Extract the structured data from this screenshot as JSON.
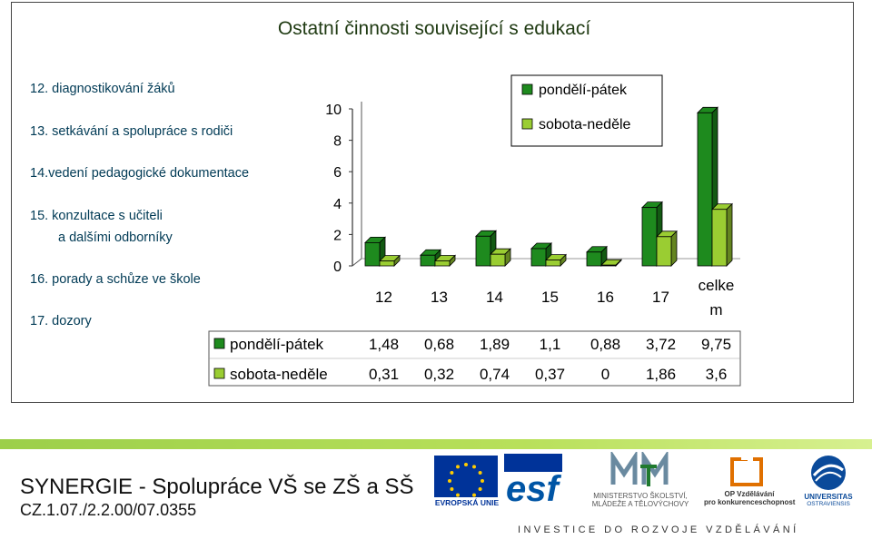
{
  "title": "Ostatní činnosti související s edukací",
  "items": [
    "12. diagnostikování žáků",
    "13. setkávání a spolupráce s rodiči",
    "14.vedení pedagogické dokumentace",
    "15. konzultace s učiteli",
    "a dalšími odborníky",
    "16. porady a schůze ve škole",
    "17. dozory"
  ],
  "colors": {
    "series1": "#1e8a1e",
    "series2": "#9acd32",
    "title": "#1f3a12",
    "stripe": "#9ccf4a"
  },
  "chart_data": {
    "type": "bar",
    "categories": [
      "12",
      "13",
      "14",
      "15",
      "16",
      "17",
      "celke m"
    ],
    "series": [
      {
        "name": "pondělí-pátek",
        "values": [
          1.48,
          0.68,
          1.89,
          1.1,
          0.88,
          3.72,
          9.75
        ],
        "labels": [
          "1,48",
          "0,68",
          "1,89",
          "1,1",
          "0,88",
          "3,72",
          "9,75"
        ]
      },
      {
        "name": "sobota-neděle",
        "values": [
          0.31,
          0.32,
          0.74,
          0.37,
          0,
          1.86,
          3.6
        ],
        "labels": [
          "0,31",
          "0,32",
          "0,74",
          "0,37",
          "0",
          "1,86",
          "3,6"
        ]
      }
    ],
    "yticks": [
      "0",
      "2",
      "4",
      "6",
      "8",
      "10"
    ],
    "ylim": [
      0,
      10
    ],
    "legend": "top-right",
    "data_table": true
  },
  "footer": {
    "project_name": "SYNERGIE - Spolupráce VŠ se ZŠ a SŠ",
    "project_code": "CZ.1.07./2.2.00/07.0355",
    "slogan": "INVESTICE DO ROZVOJE VZDĚLÁVÁNÍ"
  },
  "logos": {
    "eu_caption": "EVROPSKÁ UNIE",
    "esf_text": "esf",
    "msmt_caption1": "MINISTERSTVO ŠKOLSTVÍ,",
    "msmt_caption2": "MLÁDEŽE A TĚLOVÝCHOVY",
    "op_caption1": "OP Vzdělávání",
    "op_caption2": "pro konkurenceschopnost",
    "uni_caption1": "UNIVERSITAS",
    "uni_caption2": "OSTRAVIENSIS"
  }
}
